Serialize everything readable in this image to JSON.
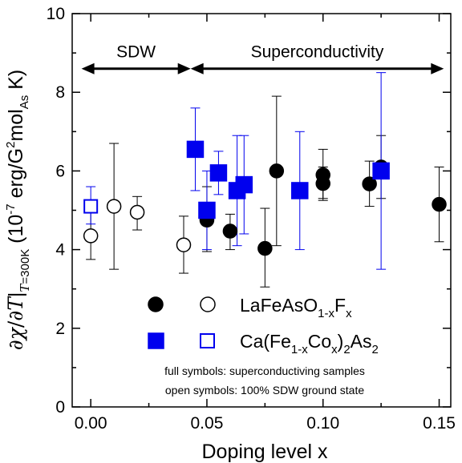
{
  "chart_data": {
    "type": "scatter",
    "xlabel": "Doping level x",
    "ylabel": "∂χ/∂T|T=300K (10-7 erg/G2molAs K)",
    "xlim": [
      -0.008,
      0.155
    ],
    "ylim": [
      0,
      10
    ],
    "xticks": [
      "0.00",
      "0.05",
      "0.10",
      "0.15"
    ],
    "xtick_values": [
      0,
      0.05,
      0.1,
      0.15
    ],
    "yticks": [
      "0",
      "2",
      "4",
      "6",
      "8",
      "10"
    ],
    "ytick_values": [
      0,
      2,
      4,
      6,
      8,
      10
    ],
    "grid": false,
    "regions": [
      {
        "label": "SDW",
        "x_start": -0.004,
        "x_end": 0.043,
        "y": 8.6
      },
      {
        "label": "Superconductivity",
        "x_start": 0.043,
        "x_end": 0.152,
        "y": 8.6
      }
    ],
    "series": [
      {
        "name": "LaFeAsO1-xFx",
        "color": "#000000",
        "marker": "circle",
        "points": [
          {
            "x": 0.0,
            "y": 4.35,
            "lo": 3.75,
            "hi": 4.95,
            "filled": false
          },
          {
            "x": 0.01,
            "y": 5.1,
            "lo": 3.5,
            "hi": 6.7,
            "filled": false
          },
          {
            "x": 0.02,
            "y": 4.95,
            "lo": 4.5,
            "hi": 5.35,
            "filled": false
          },
          {
            "x": 0.04,
            "y": 4.12,
            "lo": 3.4,
            "hi": 4.85,
            "filled": false
          },
          {
            "x": 0.05,
            "y": 4.75,
            "lo": 3.95,
            "hi": 5.6,
            "filled": true
          },
          {
            "x": 0.06,
            "y": 4.47,
            "lo": 4.0,
            "hi": 4.9,
            "filled": true
          },
          {
            "x": 0.075,
            "y": 4.03,
            "lo": 3.05,
            "hi": 5.05,
            "filled": true
          },
          {
            "x": 0.08,
            "y": 6.0,
            "lo": 4.1,
            "hi": 7.9,
            "filled": true
          },
          {
            "x": 0.1,
            "y": 5.9,
            "lo": 5.25,
            "hi": 6.55,
            "filled": true
          },
          {
            "x": 0.1,
            "y": 5.68,
            "lo": 5.3,
            "hi": 6.1,
            "filled": true
          },
          {
            "x": 0.12,
            "y": 5.67,
            "lo": 5.1,
            "hi": 6.25,
            "filled": true
          },
          {
            "x": 0.125,
            "y": 6.1,
            "lo": 5.3,
            "hi": 6.9,
            "filled": true
          },
          {
            "x": 0.15,
            "y": 5.15,
            "lo": 4.2,
            "hi": 6.1,
            "filled": true
          }
        ]
      },
      {
        "name": "Ca(Fe1-xCox)2As2",
        "color": "#0000ee",
        "marker": "square",
        "points": [
          {
            "x": 0.0,
            "y": 5.1,
            "lo": 4.65,
            "hi": 5.6,
            "filled": false
          },
          {
            "x": 0.045,
            "y": 6.55,
            "lo": 5.5,
            "hi": 7.6,
            "filled": true
          },
          {
            "x": 0.05,
            "y": 5.0,
            "lo": 4.0,
            "hi": 6.0,
            "filled": true
          },
          {
            "x": 0.055,
            "y": 5.95,
            "lo": 5.4,
            "hi": 6.5,
            "filled": true
          },
          {
            "x": 0.063,
            "y": 5.5,
            "lo": 4.1,
            "hi": 6.9,
            "filled": true
          },
          {
            "x": 0.066,
            "y": 5.65,
            "lo": 4.4,
            "hi": 6.9,
            "filled": true
          },
          {
            "x": 0.09,
            "y": 5.5,
            "lo": 4.0,
            "hi": 7.0,
            "filled": true
          },
          {
            "x": 0.125,
            "y": 6.0,
            "lo": 3.5,
            "hi": 8.5,
            "filled": true
          }
        ]
      }
    ],
    "legend": {
      "placement": "bottom-center",
      "entries": [
        {
          "series": "LaFeAsO1-xFx",
          "main": "LaFeAsO",
          "sub1": "1-x",
          "mid": "F",
          "sub2": "x"
        },
        {
          "series": "Ca(Fe1-xCox)2As2",
          "parts": [
            "Ca(Fe",
            "1-x",
            "Co",
            "x",
            ")",
            "2",
            "As",
            "2"
          ]
        }
      ]
    },
    "annotations": [
      "full symbols: superconductiving samples",
      "open symbols: 100% SDW ground state"
    ]
  }
}
